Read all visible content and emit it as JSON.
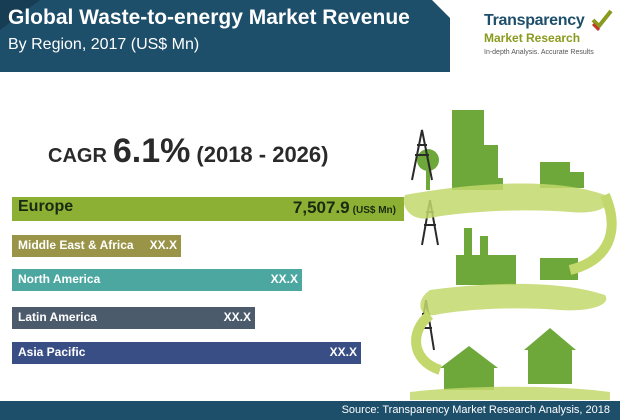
{
  "header": {
    "title": "Global Waste-to-energy Market Revenue",
    "subtitle": "By Region, 2017 (US$ Mn)"
  },
  "logo": {
    "name": "Transparency",
    "sub": "Market Research",
    "tagline": "In-depth Analysis. Accurate Results"
  },
  "cagr": {
    "label": "CAGR",
    "value": "6.1%",
    "period": "(2018 - 2026)"
  },
  "chart_data": {
    "type": "bar",
    "orientation": "horizontal",
    "categories": [
      "Europe",
      "Middle East & Africa",
      "North America",
      "Latin America",
      "Asia Pacific"
    ],
    "value_labels": [
      "7,507.9",
      "XX.X",
      "XX.X",
      "XX.X",
      "XX.X"
    ],
    "values": [
      7507.9,
      null,
      null,
      null,
      null
    ],
    "relative_lengths": [
      1.0,
      0.43,
      0.74,
      0.62,
      0.89
    ],
    "unit": "(US$ Mn)",
    "colors": [
      "#8cb033",
      "#9a9448",
      "#4ba7a0",
      "#4c5b6c",
      "#3a4e86"
    ]
  },
  "footer": {
    "source": "Source: Transparency Market Research Analysis, 2018"
  }
}
